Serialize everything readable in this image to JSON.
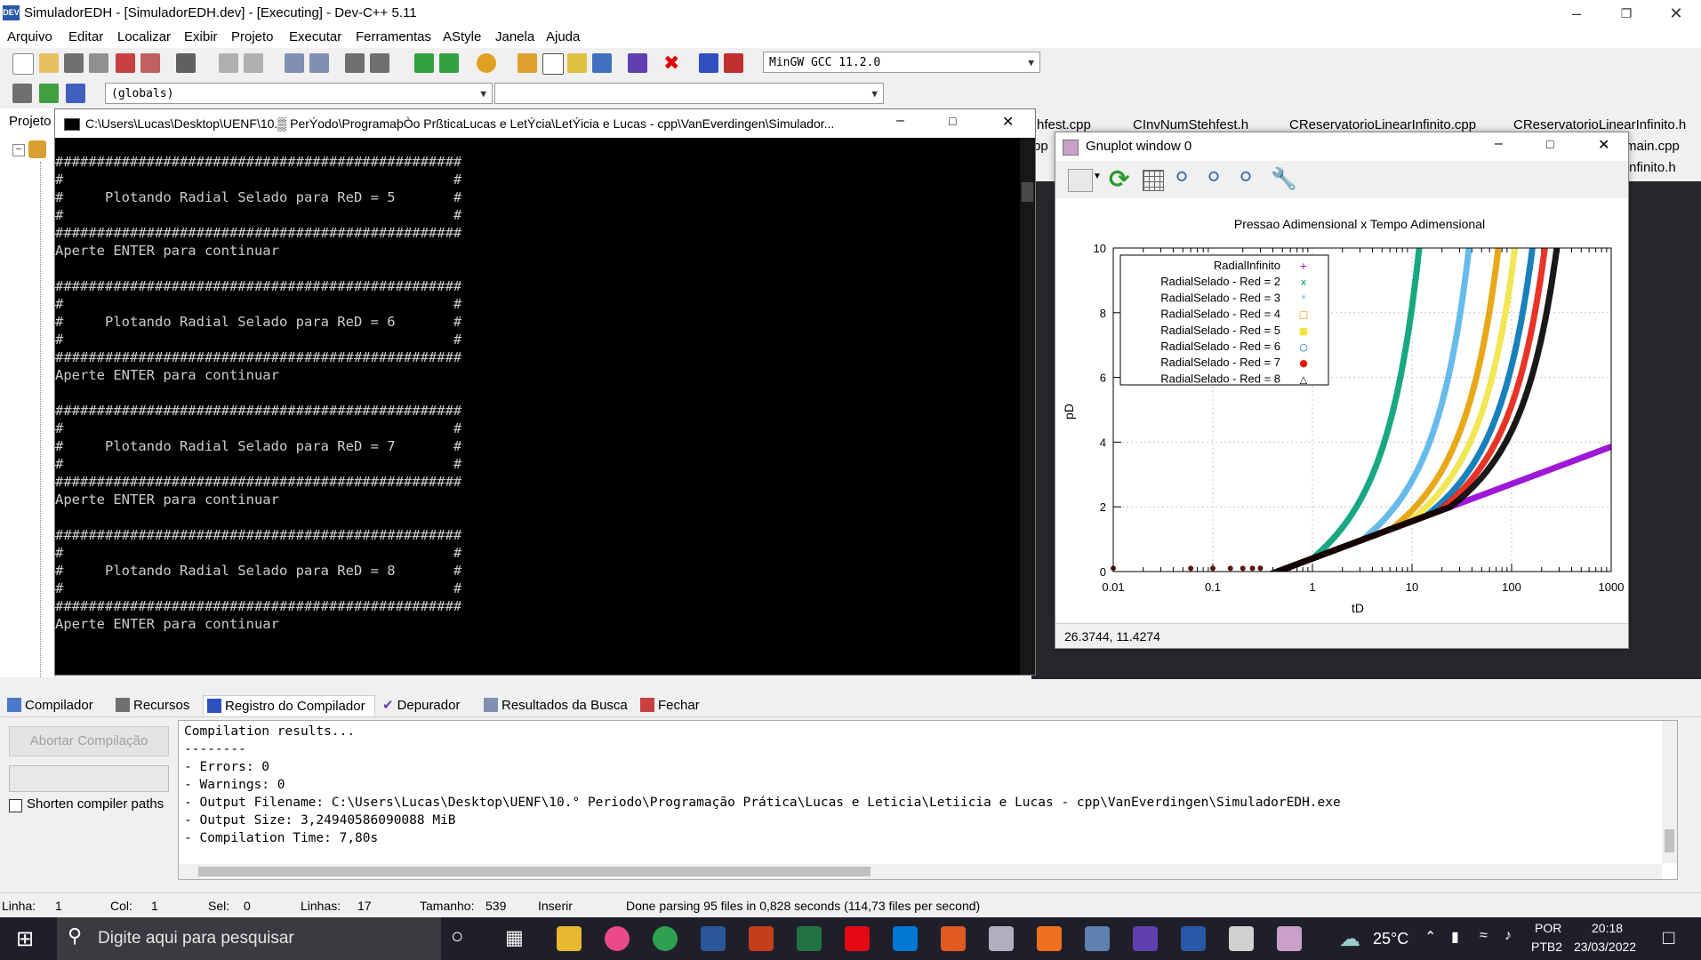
{
  "window": {
    "title": "SimuladorEDH - [SimuladorEDH.dev] - [Executing] - Dev-C++ 5.11"
  },
  "menu": [
    "Arquivo",
    "Editar",
    "Localizar",
    "Exibir",
    "Projeto",
    "Executar",
    "Ferramentas",
    "AStyle",
    "Janela",
    "Ajuda"
  ],
  "toolbar": {
    "compiler_select": "MinGW GCC 11.2.0",
    "scope_select": "(globals)"
  },
  "left_panel": {
    "tab": "Projeto"
  },
  "editor_tabs": [
    "hfest.cpp",
    "CInvNumStehfest.h",
    "CReservatorioLinearInfinito.cpp",
    "CReservatorioLinearInfinito.h",
    "pp",
    "main.cpp",
    "Infinito.h"
  ],
  "console": {
    "title": "C:\\Users\\Lucas\\Desktop\\UENF\\10.▒ PerÝodo\\ProgramaþÒo PrßticaLucas e LetÝcia\\LetÝicia e Lucas - cpp\\VanEverdingen\\Simulador...",
    "text": "#################################################\n#                                               #\n#     Plotando Radial Selado para ReD = 5       #\n#                                               #\n#################################################\nAperte ENTER para continuar\n\n#################################################\n#                                               #\n#     Plotando Radial Selado para ReD = 6       #\n#                                               #\n#################################################\nAperte ENTER para continuar\n\n#################################################\n#                                               #\n#     Plotando Radial Selado para ReD = 7       #\n#                                               #\n#################################################\nAperte ENTER para continuar\n\n#################################################\n#                                               #\n#     Plotando Radial Selado para ReD = 8       #\n#                                               #\n#################################################\nAperte ENTER para continuar"
  },
  "gnuplot": {
    "title": "Gnuplot window 0",
    "status": "26.3744,  11.4274"
  },
  "chart_data": {
    "type": "scatter",
    "title": "Pressao Adimensional x Tempo Adimensional",
    "xlabel": "tD",
    "ylabel": "pD",
    "xscale": "log",
    "xlim": [
      0.01,
      1000
    ],
    "ylim": [
      0,
      10
    ],
    "xticks": [
      "0.01",
      "0.1",
      "1",
      "10",
      "100",
      "1000"
    ],
    "yticks": [
      "0",
      "2",
      "4",
      "6",
      "8",
      "10"
    ],
    "legend_position": "top-left",
    "series": [
      {
        "name": "RadialInfinito",
        "color": "#9400d3",
        "marker": "+",
        "x_end": 1000
      },
      {
        "name": "RadialSelado - Red = 2",
        "color": "#009e73",
        "marker": "x",
        "x_end": 12
      },
      {
        "name": "RadialSelado - Red = 3",
        "color": "#56b4e9",
        "marker": "*",
        "x_end": 38
      },
      {
        "name": "RadialSelado - Red = 4",
        "color": "#e69f00",
        "marker": "□",
        "x_end": 75
      },
      {
        "name": "RadialSelado - Red = 5",
        "color": "#f0e442",
        "marker": "■",
        "x_end": 110
      },
      {
        "name": "RadialSelado - Red = 6",
        "color": "#0072b2",
        "marker": "○",
        "x_end": 165
      },
      {
        "name": "RadialSelado - Red = 7",
        "color": "#e51e10",
        "marker": "●",
        "x_end": 220
      },
      {
        "name": "RadialSelado - Red = 8",
        "color": "#000000",
        "marker": "△",
        "x_end": 290
      }
    ]
  },
  "bottom_tabs": [
    "Compilador",
    "Recursos",
    "Registro do Compilador",
    "Depurador",
    "Resultados da Busca",
    "Fechar"
  ],
  "bottom_panel": {
    "abort_button": "Abortar Compilação",
    "shorten_label": "Shorten compiler paths"
  },
  "compile_log": "Compilation results...\n--------\n- Errors: 0\n- Warnings: 0\n- Output Filename: C:\\Users\\Lucas\\Desktop\\UENF\\10.° Periodo\\Programação Prática\\Lucas e Leticia\\Letiicia e Lucas - cpp\\VanEverdingen\\SimuladorEDH.exe\n- Output Size: 3,24940586090088 MiB\n- Compilation Time: 7,80s",
  "statusbar": {
    "linha_label": "Linha:",
    "linha": "1",
    "col_label": "Col:",
    "col": "1",
    "sel_label": "Sel:",
    "sel": "0",
    "linhas_label": "Linhas:",
    "linhas": "17",
    "tamanho_label": "Tamanho:",
    "tamanho": "539",
    "mode": "Inserir",
    "message": "Done parsing 95 files in 0,828 seconds (114,73 files per second)"
  },
  "taskbar": {
    "search_placeholder": "Digite aqui para pesquisar",
    "temperature": "25°C",
    "lang1": "POR",
    "lang2": "PTB2",
    "time": "20:18",
    "date": "23/03/2022"
  }
}
